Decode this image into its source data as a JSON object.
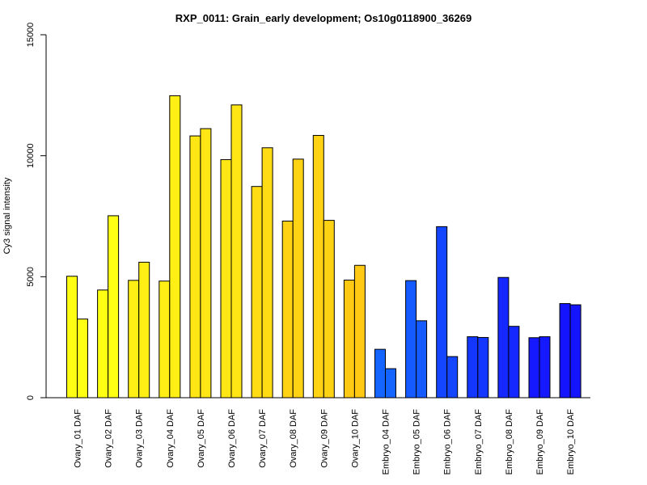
{
  "chart_data": {
    "type": "bar",
    "title": "RXP_0011: Grain_early development; Os10g0118900_36269",
    "xlabel": "",
    "ylabel": "Cy3 signal intensity",
    "ylim": [
      0,
      15000
    ],
    "yticks": [
      0,
      5000,
      10000,
      15000
    ],
    "grid": false,
    "legend": "none",
    "categories": [
      "Ovary_01 DAF",
      "Ovary_02 DAF",
      "Ovary_03 DAF",
      "Ovary_04 DAF",
      "Ovary_05 DAF",
      "Ovary_06 DAF",
      "Ovary_07 DAF",
      "Ovary_08 DAF",
      "Ovary_09 DAF",
      "Ovary_10 DAF",
      "Embryo_04 DAF",
      "Embryo_05 DAF",
      "Embryo_06 DAF",
      "Embryo_07 DAF",
      "Embryo_08 DAF",
      "Embryo_09 DAF",
      "Embryo_10 DAF"
    ],
    "series": [
      {
        "values": [
          5020,
          4450,
          4850,
          4820,
          10820,
          9840,
          8730,
          7300,
          10840,
          4860,
          2000,
          4840,
          7070,
          2520,
          4970,
          2480,
          3890
        ]
      },
      {
        "values": [
          3250,
          7520,
          5600,
          12480,
          11120,
          12100,
          10330,
          9860,
          7330,
          5470,
          1200,
          3180,
          1700,
          2490,
          2950,
          2520,
          3840
        ]
      }
    ],
    "colors": [
      "#ffff14",
      "#ffff14",
      "#ffef14",
      "#ffef14",
      "#ffe614",
      "#ffe614",
      "#ffdc14",
      "#ffd214",
      "#ffd214",
      "#ffc914",
      "#1464ff",
      "#145aff",
      "#1446ff",
      "#1437ff",
      "#1428ff",
      "#1419ff",
      "#1414ff"
    ]
  }
}
